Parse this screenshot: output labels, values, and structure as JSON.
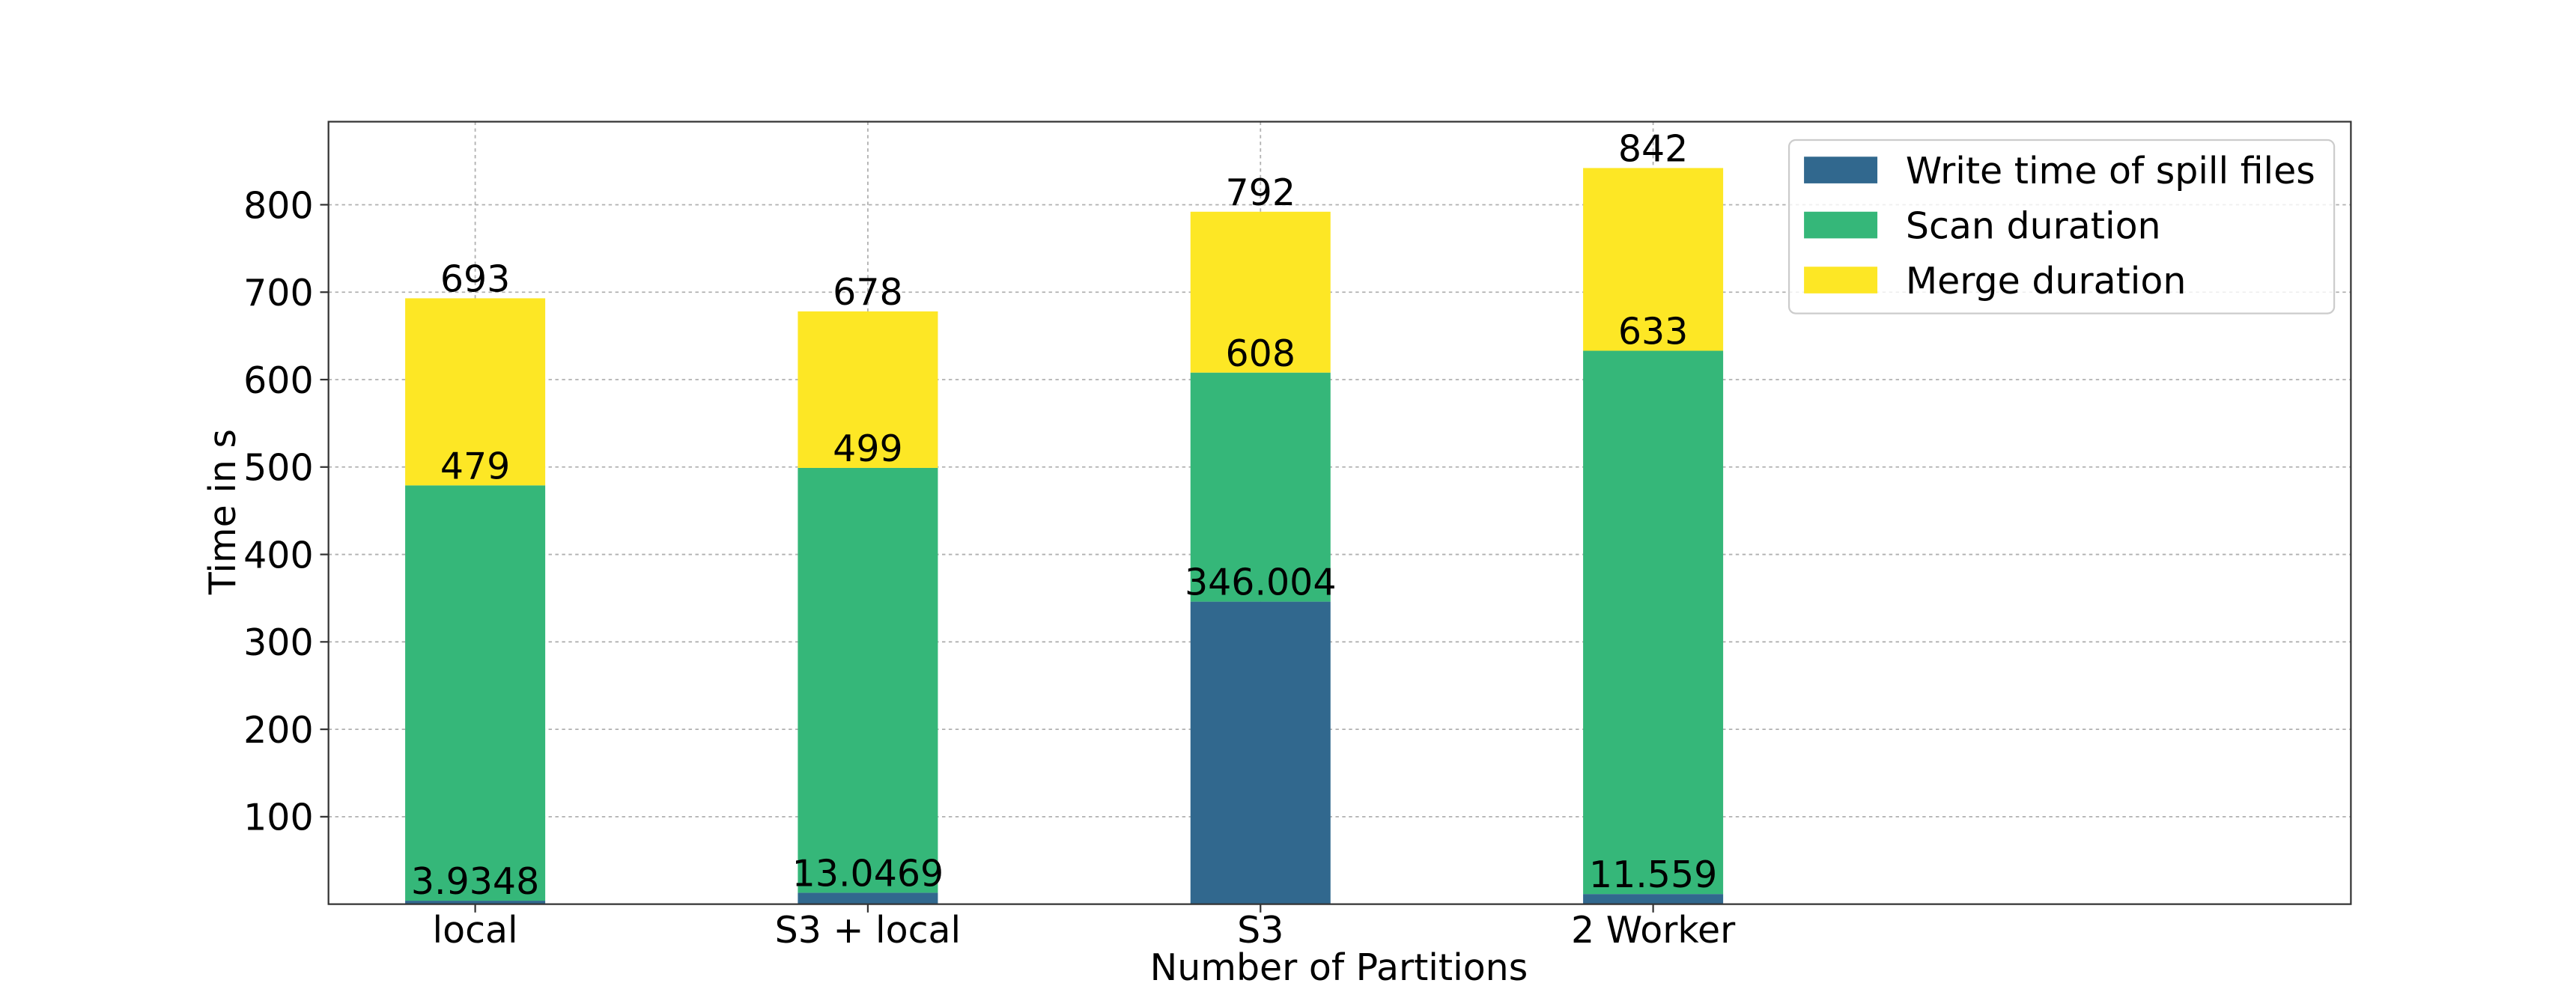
{
  "chart_data": {
    "type": "stacked_bar",
    "x_label": "Number of Partitions",
    "y_label": "Time in s",
    "categories": [
      "local",
      "S3 + local",
      "S3",
      "2 Worker"
    ],
    "series": [
      {
        "name": "Write time of spill files",
        "color": "#31688e",
        "values": [
          3.9348,
          13.0469,
          346.004,
          11.559
        ],
        "totals": [
          3.9348,
          13.0469,
          346.004,
          11.559
        ]
      },
      {
        "name": "Scan duration",
        "color": "#35b779",
        "values": [
          475.0652,
          485.9531,
          261.996,
          621.441
        ],
        "totals": [
          479,
          499,
          608,
          633
        ]
      },
      {
        "name": "Merge duration",
        "color": "#fde725",
        "values": [
          214,
          179,
          184,
          209
        ],
        "totals": [
          693,
          678,
          792,
          842
        ]
      }
    ],
    "ylim": [
      0,
      895
    ],
    "yticks": [
      100,
      200,
      300,
      400,
      500,
      600,
      700,
      800
    ],
    "grid": true,
    "legend": "upper right"
  }
}
